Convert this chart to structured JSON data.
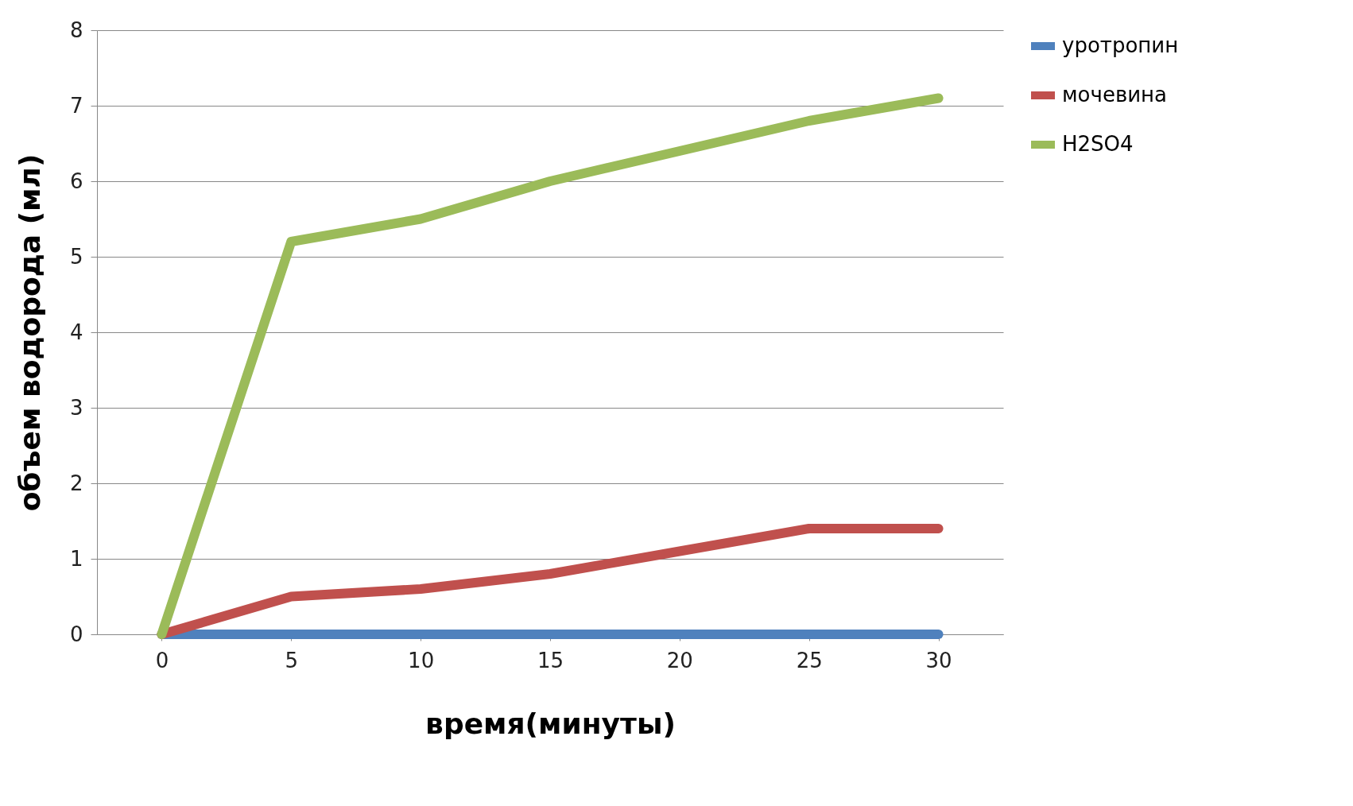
{
  "chart_data": {
    "type": "line",
    "xlabel": "время(минуты)",
    "ylabel": "объем водорода (мл)",
    "categories": [
      "0",
      "5",
      "10",
      "15",
      "20",
      "25",
      "30"
    ],
    "series": [
      {
        "name": "уротропин",
        "color": "#4f81bd",
        "values": [
          0,
          0,
          0,
          0,
          0,
          0,
          0
        ]
      },
      {
        "name": "мочевина",
        "color": "#c0504d",
        "values": [
          0,
          0.5,
          0.6,
          0.8,
          1.1,
          1.4,
          1.4
        ]
      },
      {
        "name": "H2SO4",
        "color": "#9bbb59",
        "values": [
          0,
          5.2,
          5.5,
          6.0,
          6.4,
          6.8,
          7.1
        ]
      }
    ],
    "ylim": [
      0,
      8
    ],
    "yticks": [
      0,
      1,
      2,
      3,
      4,
      5,
      6,
      7,
      8
    ],
    "grid": "y",
    "legend": "right",
    "marker": "none",
    "line_style": "solid"
  }
}
